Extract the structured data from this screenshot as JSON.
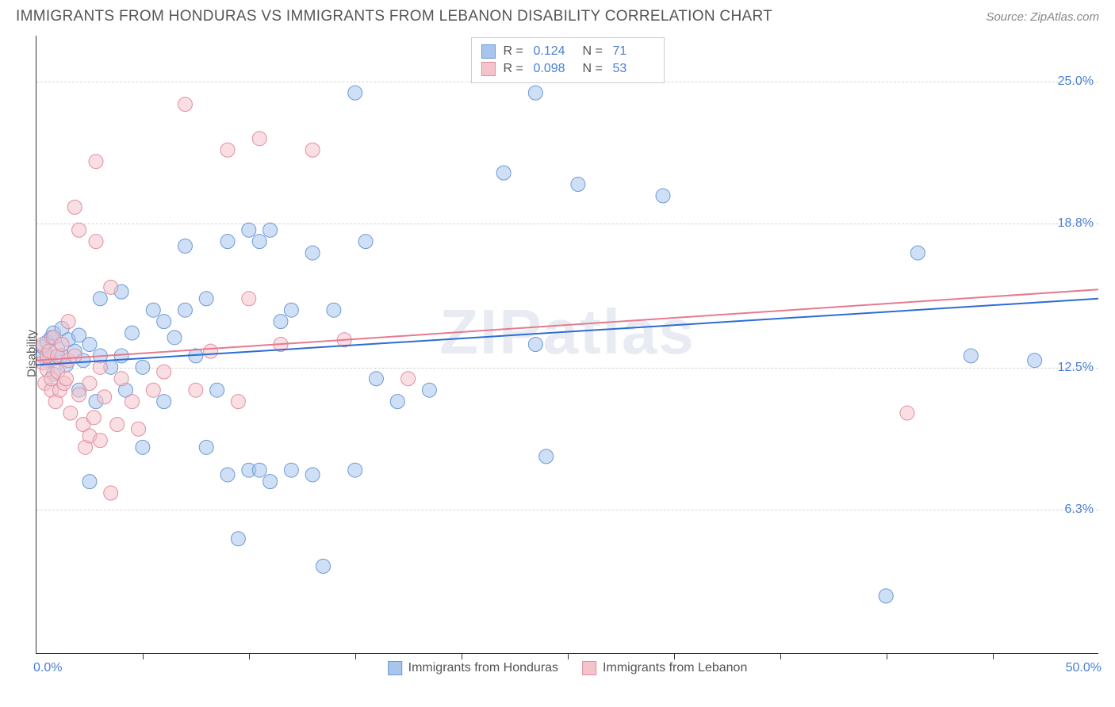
{
  "header": {
    "title": "IMMIGRANTS FROM HONDURAS VS IMMIGRANTS FROM LEBANON DISABILITY CORRELATION CHART",
    "source": "Source: ZipAtlas.com"
  },
  "chart": {
    "type": "scatter",
    "ylabel": "Disability",
    "watermark": "ZIPatlas",
    "xlim": [
      0,
      50
    ],
    "ylim": [
      0,
      27
    ],
    "xlim_labels": {
      "min": "0.0%",
      "max": "50.0%"
    },
    "ytick_values": [
      6.3,
      12.5,
      18.8,
      25.0
    ],
    "ytick_labels": [
      "6.3%",
      "12.5%",
      "18.8%",
      "25.0%"
    ],
    "xtick_values": [
      5,
      10,
      15,
      20,
      25,
      30,
      35,
      40,
      45
    ],
    "marker_radius": 9,
    "marker_opacity": 0.55,
    "grid_color": "#d5d5d5",
    "grid_dash": "4,4",
    "trend_line_width": 2,
    "series": [
      {
        "id": "honduras",
        "label": "Immigrants from Honduras",
        "color_fill": "#a8c5ed",
        "color_stroke": "#6b9ad6",
        "trend_color": "#2d6cd4",
        "R": "0.124",
        "N": "71",
        "trend": {
          "x1": 0,
          "y1": 12.6,
          "x2": 50,
          "y2": 15.5
        },
        "points": [
          [
            0.3,
            13.0
          ],
          [
            0.3,
            13.4
          ],
          [
            0.5,
            12.8
          ],
          [
            0.5,
            13.6
          ],
          [
            0.6,
            12.9
          ],
          [
            0.7,
            13.8
          ],
          [
            0.8,
            12.2
          ],
          [
            0.8,
            14.0
          ],
          [
            1.0,
            13.3
          ],
          [
            1.2,
            13.0
          ],
          [
            1.2,
            14.2
          ],
          [
            1.4,
            12.6
          ],
          [
            1.5,
            13.7
          ],
          [
            1.8,
            13.2
          ],
          [
            2.0,
            13.9
          ],
          [
            2.0,
            11.5
          ],
          [
            2.2,
            12.8
          ],
          [
            2.5,
            13.5
          ],
          [
            2.5,
            7.5
          ],
          [
            2.8,
            11.0
          ],
          [
            3.0,
            13.0
          ],
          [
            3.0,
            15.5
          ],
          [
            3.5,
            12.5
          ],
          [
            4.0,
            13.0
          ],
          [
            4.0,
            15.8
          ],
          [
            4.2,
            11.5
          ],
          [
            4.5,
            14.0
          ],
          [
            5.0,
            12.5
          ],
          [
            5.0,
            9.0
          ],
          [
            5.5,
            15.0
          ],
          [
            6.0,
            14.5
          ],
          [
            6.0,
            11.0
          ],
          [
            6.5,
            13.8
          ],
          [
            7.0,
            15.0
          ],
          [
            7.0,
            17.8
          ],
          [
            7.5,
            13.0
          ],
          [
            8.0,
            15.5
          ],
          [
            8.0,
            9.0
          ],
          [
            8.5,
            11.5
          ],
          [
            9.0,
            18.0
          ],
          [
            9.0,
            7.8
          ],
          [
            9.5,
            5.0
          ],
          [
            10.0,
            8.0
          ],
          [
            10.0,
            18.5
          ],
          [
            10.5,
            8.0
          ],
          [
            10.5,
            18.0
          ],
          [
            11.0,
            18.5
          ],
          [
            11.0,
            7.5
          ],
          [
            11.5,
            14.5
          ],
          [
            12.0,
            15.0
          ],
          [
            12.0,
            8.0
          ],
          [
            13.0,
            7.8
          ],
          [
            13.0,
            17.5
          ],
          [
            13.5,
            3.8
          ],
          [
            14.0,
            15.0
          ],
          [
            15.0,
            8.0
          ],
          [
            15.0,
            24.5
          ],
          [
            15.5,
            18.0
          ],
          [
            16.0,
            12.0
          ],
          [
            17.0,
            11.0
          ],
          [
            18.5,
            11.5
          ],
          [
            22.0,
            21.0
          ],
          [
            23.5,
            24.5
          ],
          [
            23.5,
            13.5
          ],
          [
            24.0,
            8.6
          ],
          [
            25.5,
            20.5
          ],
          [
            29.5,
            20.0
          ],
          [
            40.0,
            2.5
          ],
          [
            41.5,
            17.5
          ],
          [
            44.0,
            13.0
          ],
          [
            47.0,
            12.8
          ]
        ]
      },
      {
        "id": "lebanon",
        "label": "Immigrants from Lebanon",
        "color_fill": "#f4c3cc",
        "color_stroke": "#e08f9e",
        "trend_color": "#e67a8f",
        "R": "0.098",
        "N": "53",
        "trend": {
          "x1": 0,
          "y1": 12.8,
          "x2": 50,
          "y2": 15.9
        },
        "points": [
          [
            0.3,
            12.7
          ],
          [
            0.3,
            13.5
          ],
          [
            0.4,
            11.8
          ],
          [
            0.5,
            12.4
          ],
          [
            0.5,
            13.0
          ],
          [
            0.6,
            13.2
          ],
          [
            0.7,
            11.5
          ],
          [
            0.7,
            12.0
          ],
          [
            0.8,
            13.8
          ],
          [
            0.9,
            11.0
          ],
          [
            1.0,
            12.3
          ],
          [
            1.0,
            13.0
          ],
          [
            1.1,
            11.5
          ],
          [
            1.2,
            13.5
          ],
          [
            1.3,
            11.8
          ],
          [
            1.4,
            12.0
          ],
          [
            1.5,
            12.8
          ],
          [
            1.5,
            14.5
          ],
          [
            1.6,
            10.5
          ],
          [
            1.8,
            13.0
          ],
          [
            1.8,
            19.5
          ],
          [
            2.0,
            11.3
          ],
          [
            2.0,
            18.5
          ],
          [
            2.2,
            10.0
          ],
          [
            2.3,
            9.0
          ],
          [
            2.5,
            11.8
          ],
          [
            2.5,
            9.5
          ],
          [
            2.7,
            10.3
          ],
          [
            2.8,
            21.5
          ],
          [
            2.8,
            18.0
          ],
          [
            3.0,
            12.5
          ],
          [
            3.0,
            9.3
          ],
          [
            3.2,
            11.2
          ],
          [
            3.5,
            7.0
          ],
          [
            3.5,
            16.0
          ],
          [
            3.8,
            10.0
          ],
          [
            4.0,
            12.0
          ],
          [
            4.5,
            11.0
          ],
          [
            4.8,
            9.8
          ],
          [
            5.5,
            11.5
          ],
          [
            6.0,
            12.3
          ],
          [
            7.0,
            24.0
          ],
          [
            7.5,
            11.5
          ],
          [
            8.2,
            13.2
          ],
          [
            9.0,
            22.0
          ],
          [
            9.5,
            11.0
          ],
          [
            10.0,
            15.5
          ],
          [
            10.5,
            22.5
          ],
          [
            11.5,
            13.5
          ],
          [
            13.0,
            22.0
          ],
          [
            14.5,
            13.7
          ],
          [
            17.5,
            12.0
          ],
          [
            41.0,
            10.5
          ]
        ]
      }
    ]
  }
}
